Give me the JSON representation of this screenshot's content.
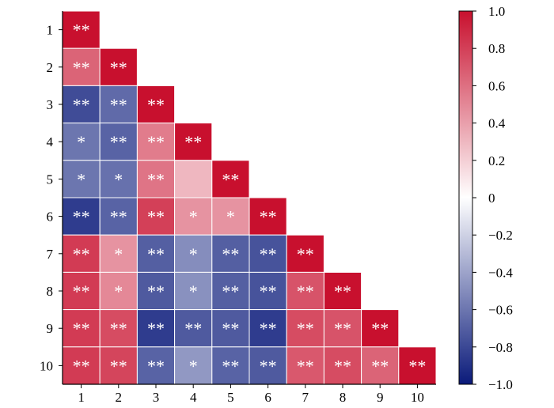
{
  "chart_data": {
    "type": "heatmap",
    "title": "",
    "xlabel": "",
    "ylabel": "",
    "row_labels": [
      "1",
      "2",
      "3",
      "4",
      "5",
      "6",
      "7",
      "8",
      "9",
      "10"
    ],
    "col_labels": [
      "1",
      "2",
      "3",
      "4",
      "5",
      "6",
      "7",
      "8",
      "9",
      "10"
    ],
    "triangle": "lower",
    "values": [
      [
        1.0
      ],
      [
        0.65,
        1.0
      ],
      [
        -0.78,
        -0.65,
        1.0
      ],
      [
        -0.6,
        -0.68,
        0.55,
        1.0
      ],
      [
        -0.6,
        -0.62,
        0.58,
        0.3,
        1.0
      ],
      [
        -0.85,
        -0.68,
        0.8,
        0.45,
        0.45,
        1.0
      ],
      [
        0.82,
        0.45,
        -0.7,
        -0.5,
        -0.7,
        -0.75,
        1.0
      ],
      [
        0.82,
        0.5,
        -0.72,
        -0.48,
        -0.7,
        -0.75,
        0.72,
        1.0
      ],
      [
        0.82,
        0.75,
        -0.85,
        -0.72,
        -0.72,
        -0.85,
        0.75,
        0.72,
        1.0
      ],
      [
        0.82,
        0.78,
        -0.68,
        -0.45,
        -0.68,
        -0.72,
        0.7,
        0.75,
        0.65,
        1.0
      ]
    ],
    "significance": [
      [
        "**"
      ],
      [
        "**",
        "**"
      ],
      [
        "**",
        "**",
        "**"
      ],
      [
        "*",
        "**",
        "**",
        "**"
      ],
      [
        "*",
        "*",
        "**",
        "",
        "**"
      ],
      [
        "**",
        "**",
        "**",
        "*",
        "*",
        "**"
      ],
      [
        "**",
        "*",
        "**",
        "*",
        "**",
        "**",
        "**"
      ],
      [
        "**",
        "*",
        "**",
        "*",
        "**",
        "**",
        "**",
        "**"
      ],
      [
        "**",
        "**",
        "**",
        "**",
        "**",
        "**",
        "**",
        "**",
        "**"
      ],
      [
        "**",
        "**",
        "**",
        "*",
        "**",
        "**",
        "**",
        "**",
        "**",
        "**"
      ]
    ],
    "colorbar": {
      "range": [
        -1.0,
        1.0
      ],
      "ticks": [
        "1.0",
        "0.8",
        "0.6",
        "0.4",
        "0.2",
        "0",
        "−0.2",
        "−0.4",
        "−0.6",
        "−0.8",
        "−1.0"
      ],
      "tick_values": [
        1.0,
        0.8,
        0.6,
        0.4,
        0.2,
        0,
        -0.2,
        -0.4,
        -0.6,
        -0.8,
        -1.0
      ],
      "colors": [
        "#0a1a7a",
        "#ffffff",
        "#c8102e"
      ]
    }
  }
}
